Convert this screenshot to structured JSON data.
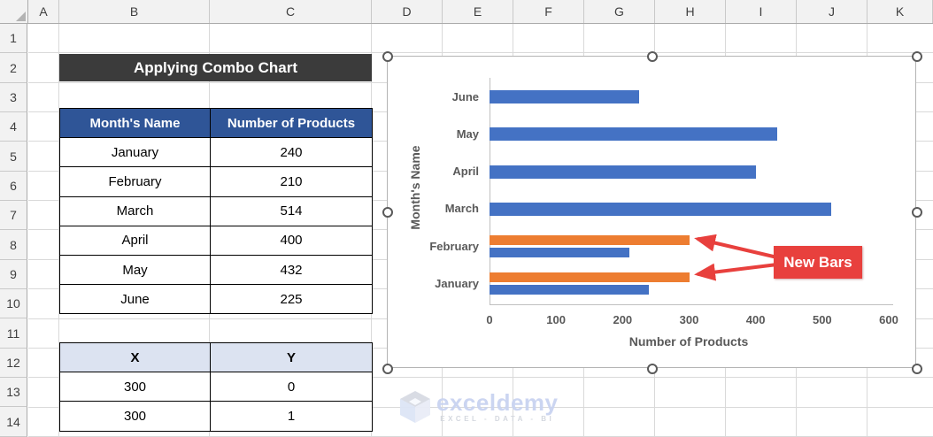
{
  "spreadsheet": {
    "column_headers": [
      "A",
      "B",
      "C",
      "D",
      "E",
      "F",
      "G",
      "H",
      "I",
      "J",
      "K"
    ],
    "row_headers": [
      "1",
      "2",
      "3",
      "4",
      "5",
      "6",
      "7",
      "8",
      "9",
      "10",
      "11",
      "12",
      "13",
      "14"
    ]
  },
  "title_banner": {
    "text": "Applying Combo Chart"
  },
  "data_table": {
    "headers": [
      "Month's Name",
      "Number of Products"
    ],
    "rows": [
      [
        "January",
        "240"
      ],
      [
        "February",
        "210"
      ],
      [
        "March",
        "514"
      ],
      [
        "April",
        "400"
      ],
      [
        "May",
        "432"
      ],
      [
        "June",
        "225"
      ]
    ]
  },
  "xy_table": {
    "headers": [
      "X",
      "Y"
    ],
    "rows": [
      [
        "300",
        "0"
      ],
      [
        "300",
        "1"
      ]
    ]
  },
  "chart_data": {
    "type": "bar",
    "orientation": "horizontal",
    "categories": [
      "January",
      "February",
      "March",
      "April",
      "May",
      "June"
    ],
    "category_display_order_top_to_bottom": [
      "June",
      "May",
      "April",
      "March",
      "February",
      "January"
    ],
    "series": [
      {
        "name": "Number of Products",
        "color": "#4472c4",
        "values": [
          240,
          210,
          514,
          400,
          432,
          225
        ]
      },
      {
        "name": "New Bars",
        "color": "#ed7d31",
        "values": [
          300,
          300,
          null,
          null,
          null,
          null
        ]
      }
    ],
    "xlabel": "Number of Products",
    "ylabel": "Month's Name",
    "xlim": [
      0,
      600
    ],
    "xticks": [
      "0",
      "100",
      "200",
      "300",
      "400",
      "500",
      "600"
    ],
    "annotation": "New Bars",
    "legend": "none",
    "grid": false
  },
  "watermark": {
    "brand": "exceldemy",
    "tagline": "EXCEL - DATA - BI"
  },
  "colors": {
    "banner_bg": "#3b3b3b",
    "table_header_bg": "#2f5597",
    "xy_header_bg": "#dce3f1",
    "bar_blue": "#4472c4",
    "bar_orange": "#ed7d31",
    "callout_red": "#e8403d",
    "axis_text": "#595959",
    "watermark_blue": "#c9d3f1"
  }
}
